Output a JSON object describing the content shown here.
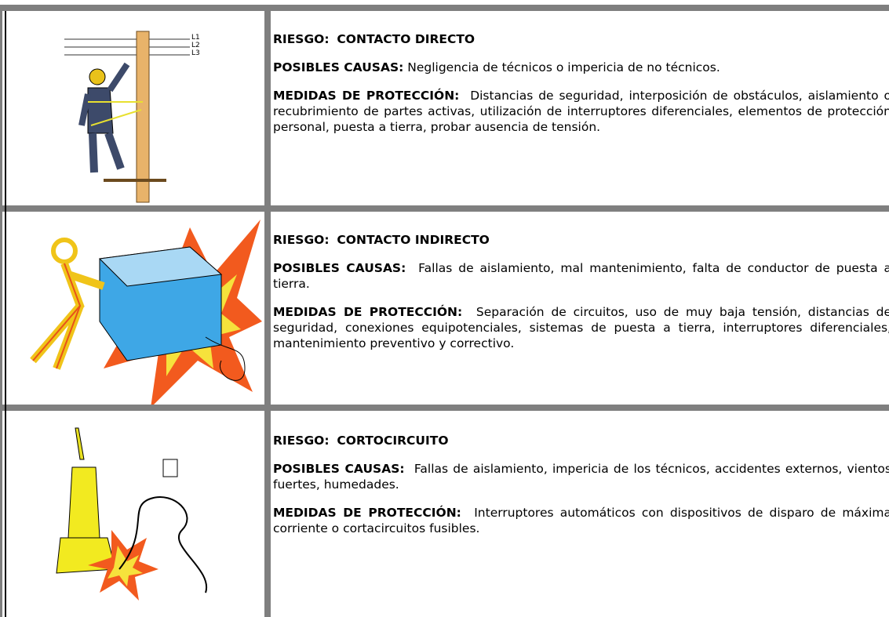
{
  "rows": [
    {
      "risk_label": "RIESGO:",
      "risk": "CONTACTO DIRECTO",
      "causes_label": "POSIBLES CAUSAS:",
      "causes": "Negligencia de técnicos o impericia de no técnicos.",
      "measures_label": "MEDIDAS DE PROTECCIÓN:",
      "measures": "Distancias de seguridad, interposición de obstáculos, aislamiento o recubrimiento de partes activas, utilización de interruptores diferenciales, elementos de protección personal, puesta a tierra, probar ausencia de tensión.",
      "image_labels": [
        "L1",
        "L2",
        "L3"
      ]
    },
    {
      "risk_label": "RIESGO:",
      "risk": "CONTACTO INDIRECTO",
      "causes_label": "POSIBLES CAUSAS:",
      "causes": "Fallas de aislamiento, mal mantenimiento, falta de conductor de puesta a tierra.",
      "measures_label": "MEDIDAS DE PROTECCIÓN:",
      "measures": "Separación de circuitos, uso de muy baja tensión, distancias de seguridad, conexiones equipotenciales, sistemas de puesta a tierra, interruptores diferenciales, mantenimiento preventivo y correctivo."
    },
    {
      "risk_label": "RIESGO:",
      "risk": "CORTOCIRCUITO",
      "causes_label": "POSIBLES CAUSAS:",
      "causes": "Fallas de aislamiento, impericia de los técnicos, accidentes externos, vientos fuertes, humedades.",
      "measures_label": "MEDIDAS DE PROTECCIÓN:",
      "measures": "Interruptores automáticos con dispositivos de disparo de máxima corriente o cortacircuitos fusibles."
    }
  ]
}
